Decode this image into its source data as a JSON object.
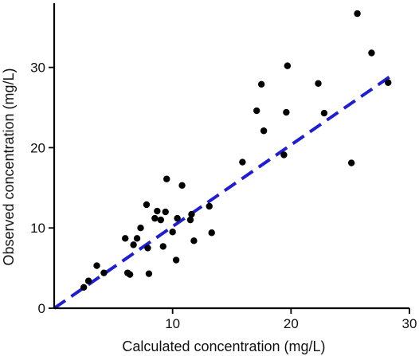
{
  "chart_data": {
    "type": "scatter",
    "xlabel": "Calculated concentration (mg/L)",
    "ylabel": "Observed concentration (mg/L)",
    "xlim": [
      0,
      30
    ],
    "ylim": [
      0,
      38
    ],
    "x_ticks": [
      10,
      20,
      30
    ],
    "y_ticks": [
      0,
      10,
      20,
      30
    ],
    "grid": false,
    "colors": {
      "points": "#000000",
      "fit_line": "#1f1fd1"
    },
    "points": [
      [
        2.5,
        2.6
      ],
      [
        2.9,
        3.4
      ],
      [
        3.6,
        5.3
      ],
      [
        4.2,
        4.4
      ],
      [
        6.0,
        8.7
      ],
      [
        6.2,
        4.4
      ],
      [
        6.4,
        4.2
      ],
      [
        6.7,
        7.9
      ],
      [
        7.0,
        8.7
      ],
      [
        7.3,
        10.0
      ],
      [
        7.8,
        12.9
      ],
      [
        7.9,
        7.5
      ],
      [
        8.0,
        4.3
      ],
      [
        8.5,
        11.2
      ],
      [
        8.7,
        12.1
      ],
      [
        9.0,
        11.0
      ],
      [
        9.2,
        7.7
      ],
      [
        9.4,
        12.0
      ],
      [
        9.5,
        16.1
      ],
      [
        10.0,
        9.5
      ],
      [
        10.3,
        6.0
      ],
      [
        10.4,
        11.2
      ],
      [
        10.8,
        15.3
      ],
      [
        11.5,
        11.0
      ],
      [
        11.6,
        11.7
      ],
      [
        11.8,
        8.4
      ],
      [
        13.1,
        12.7
      ],
      [
        13.3,
        9.4
      ],
      [
        15.9,
        18.2
      ],
      [
        17.1,
        24.6
      ],
      [
        17.5,
        27.9
      ],
      [
        17.7,
        22.1
      ],
      [
        19.4,
        19.1
      ],
      [
        19.6,
        24.4
      ],
      [
        19.7,
        30.2
      ],
      [
        22.3,
        28.0
      ],
      [
        22.8,
        24.3
      ],
      [
        25.1,
        18.1
      ],
      [
        25.6,
        36.7
      ],
      [
        26.8,
        31.8
      ],
      [
        28.2,
        28.1
      ]
    ],
    "fit_line": {
      "x": [
        0,
        28.5
      ],
      "y": [
        0,
        29.0
      ]
    }
  }
}
